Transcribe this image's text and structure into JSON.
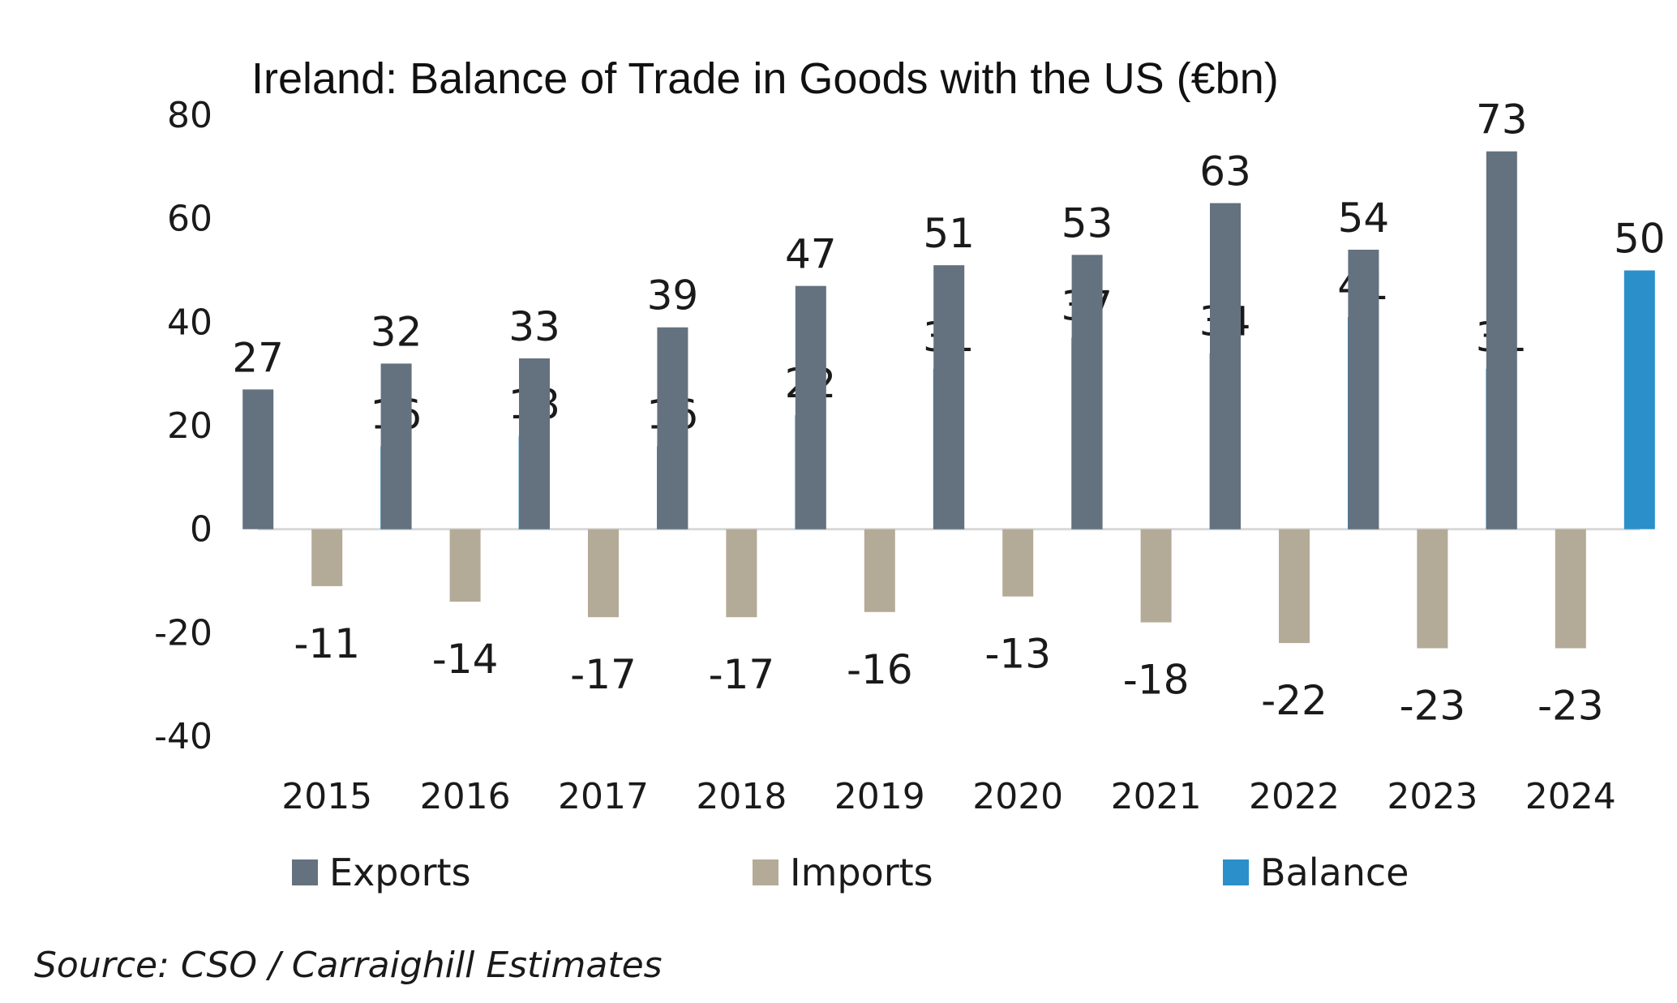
{
  "chart_data": {
    "type": "bar",
    "title": "Ireland:  Balance of Trade in Goods with the US (€bn)",
    "categories": [
      "2015",
      "2016",
      "2017",
      "2018",
      "2019",
      "2020",
      "2021",
      "2022",
      "2023",
      "2024"
    ],
    "series": [
      {
        "name": "Exports",
        "color": "#64717f",
        "values": [
          27,
          32,
          33,
          39,
          47,
          51,
          53,
          63,
          54,
          73
        ]
      },
      {
        "name": "Imports",
        "color": "#b3ab97",
        "values": [
          -11,
          -14,
          -17,
          -17,
          -16,
          -13,
          -18,
          -22,
          -23,
          -23
        ]
      },
      {
        "name": "Balance",
        "color": "#2b8fca",
        "values": [
          16,
          18,
          16,
          22,
          31,
          37,
          34,
          41,
          31,
          50
        ]
      }
    ],
    "ylim": [
      -40,
      80
    ],
    "yticks": [
      "80",
      "60",
      "40",
      "20",
      "0",
      "-20",
      "-40"
    ],
    "legend_position": "bottom",
    "grid": false,
    "source": "Source: CSO / Carraighill Estimates"
  }
}
